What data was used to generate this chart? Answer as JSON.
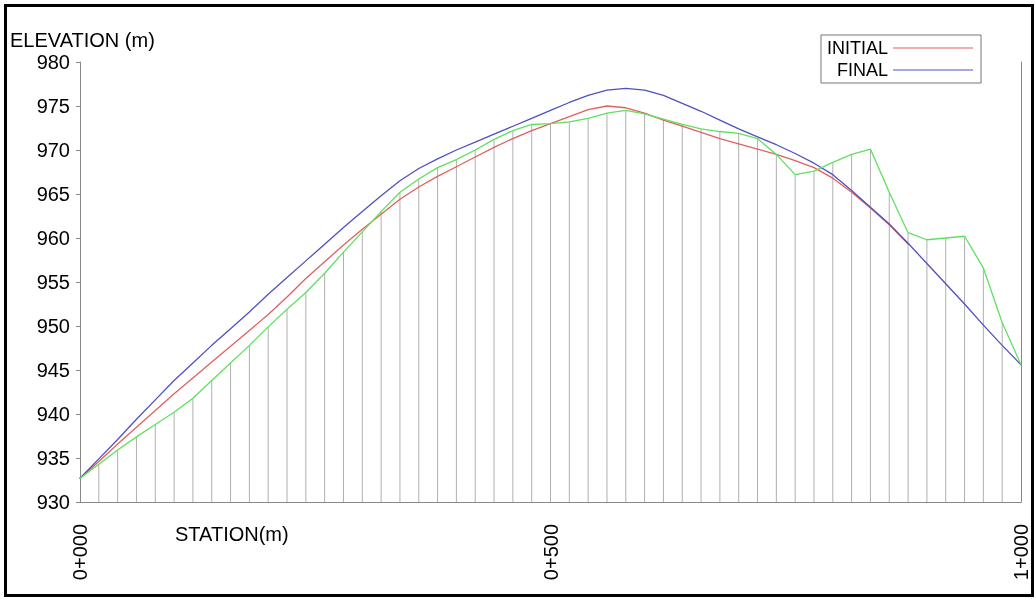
{
  "chart_data": {
    "type": "line",
    "xlabel": "STATION(m)",
    "ylabel": "ELEVATION (m)",
    "categories": [
      "0+000",
      null,
      null,
      null,
      null,
      null,
      null,
      null,
      null,
      null,
      null,
      null,
      null,
      null,
      null,
      null,
      null,
      null,
      null,
      null,
      null,
      null,
      null,
      null,
      null,
      "0+500",
      null,
      null,
      null,
      null,
      null,
      null,
      null,
      null,
      null,
      null,
      null,
      null,
      null,
      null,
      null,
      null,
      null,
      null,
      null,
      null,
      null,
      null,
      null,
      null,
      "1+000"
    ],
    "ylim": [
      930,
      980
    ],
    "yticks": [
      930,
      935,
      940,
      945,
      950,
      955,
      960,
      965,
      970,
      975,
      980
    ],
    "legend": "top right",
    "marker": "none",
    "line_style": "solid",
    "series": [
      {
        "name": "INITIAL",
        "color": "#e06060",
        "values": [
          932.7,
          934.6,
          936.6,
          938.5,
          940.4,
          942.3,
          944.1,
          945.9,
          947.7,
          949.5,
          951.3,
          953.3,
          955.4,
          957.3,
          959.2,
          961,
          962.7,
          964.4,
          965.8,
          967,
          968.1,
          969.2,
          970.3,
          971.3,
          972.2,
          973,
          973.8,
          974.6,
          975,
          974.8,
          974.2,
          973.4,
          972.7,
          972,
          971.3,
          970.7,
          970.1,
          969.5,
          968.8,
          968,
          966.8,
          965.2,
          963.4,
          961.5,
          959.3,
          null,
          null,
          null,
          null,
          null,
          null
        ]
      },
      {
        "name": "FINAL",
        "color": "#5050c0",
        "values": [
          932.7,
          934.9,
          937.1,
          939.4,
          941.6,
          943.8,
          945.8,
          947.8,
          949.7,
          951.6,
          953.6,
          955.5,
          957.4,
          959.3,
          961.2,
          963,
          964.8,
          966.5,
          967.9,
          969,
          970,
          970.9,
          971.8,
          972.7,
          973.6,
          974.5,
          975.4,
          976.2,
          976.8,
          977,
          976.8,
          976.2,
          975.3,
          974.4,
          973.4,
          972.4,
          971.5,
          970.6,
          969.6,
          968.5,
          967.2,
          965.4,
          963.5,
          961.6,
          959.4,
          957.1,
          954.8,
          952.5,
          950.1,
          947.8,
          945.6
        ]
      },
      {
        "color": "#60e060",
        "values": [
          932.7,
          934.3,
          935.9,
          937.4,
          938.8,
          940.2,
          941.8,
          943.8,
          945.8,
          947.8,
          949.9,
          951.9,
          953.8,
          956,
          958.4,
          960.7,
          963,
          965.2,
          966.7,
          968,
          968.9,
          970,
          971.2,
          972.2,
          972.9,
          973,
          973.2,
          973.6,
          974.2,
          974.5,
          974.1,
          973.5,
          972.9,
          972.4,
          972.1,
          971.9,
          971.3,
          969.5,
          967.2,
          967.6,
          968.6,
          969.5,
          970.1,
          965.2,
          960.6,
          959.8,
          960,
          960.2,
          956.6,
          950.4,
          945.6
        ]
      },
      {
        "type": "bar",
        "color": "#b0b0b0",
        "values": [
          null,
          934.3,
          935.9,
          937.4,
          938.8,
          940.2,
          941.8,
          943.8,
          945.8,
          947.8,
          949.9,
          951.9,
          953.8,
          956,
          958.4,
          960.7,
          963,
          965.2,
          966.7,
          968,
          968.9,
          970,
          971.2,
          972.2,
          972.9,
          973,
          973.2,
          973.6,
          974.2,
          974.5,
          974.1,
          973.5,
          972.9,
          972.4,
          972.1,
          971.9,
          971.3,
          969.5,
          967.2,
          967.6,
          968.6,
          969.5,
          970.1,
          965.2,
          960.6,
          959.8,
          960,
          960.2,
          956.6,
          950.4,
          null
        ]
      }
    ]
  }
}
